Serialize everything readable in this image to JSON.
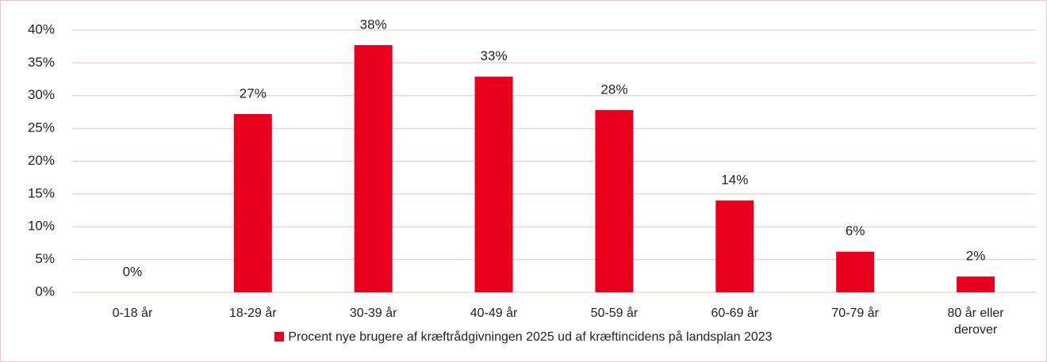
{
  "chart_data": {
    "type": "bar",
    "categories": [
      "0-18 år",
      "18-29 år",
      "30-39 år",
      "40-49 år",
      "50-59 år",
      "60-69 år",
      "70-79 år",
      "80 år eller derover"
    ],
    "series": [
      {
        "name": "Procent nye brugere af kræftrådgivningen 2025 ud af kræftincidens på landsplan 2023",
        "color": "#e8001c",
        "values": [
          0,
          27.2,
          37.7,
          32.9,
          27.8,
          14.0,
          6.2,
          2.4
        ],
        "value_labels": [
          "0%",
          "27%",
          "38%",
          "33%",
          "28%",
          "14%",
          "6%",
          "2%"
        ]
      }
    ],
    "ylim": [
      0,
      40
    ],
    "yticks": [
      {
        "value": 0,
        "label": "0%"
      },
      {
        "value": 5,
        "label": "5%"
      },
      {
        "value": 10,
        "label": "10%"
      },
      {
        "value": 15,
        "label": "15%"
      },
      {
        "value": 20,
        "label": "20%"
      },
      {
        "value": 25,
        "label": "25%"
      },
      {
        "value": 30,
        "label": "30%"
      },
      {
        "value": 35,
        "label": "35%"
      },
      {
        "value": 40,
        "label": "40%"
      }
    ],
    "grid": true,
    "legend": "bottom"
  }
}
